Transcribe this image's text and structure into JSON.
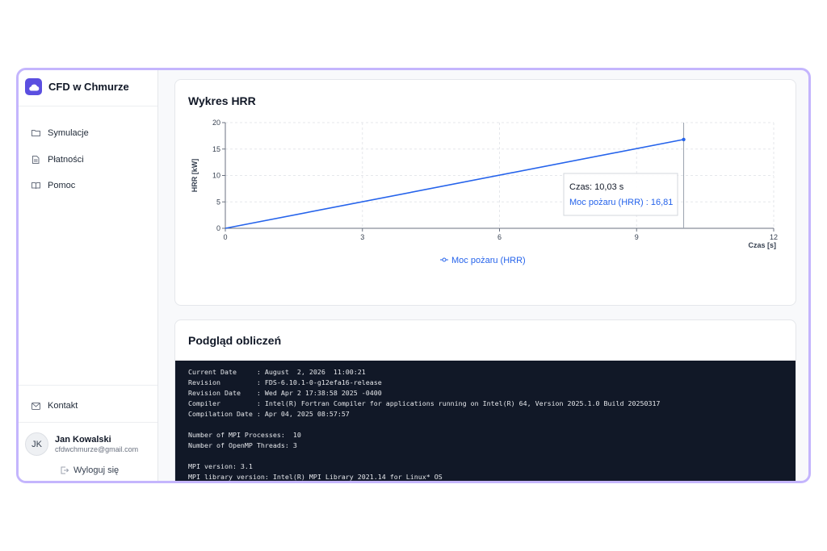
{
  "sidebar": {
    "brand": "CFD w Chmurze",
    "nav": [
      "Symulacje",
      "Płatności",
      "Pomoc"
    ],
    "contact": "Kontakt",
    "user": {
      "initials": "JK",
      "name": "Jan Kowalski",
      "email": "cfdwchmurze@gmail.com"
    },
    "logout": "Wyloguj się"
  },
  "chart_data": {
    "type": "line",
    "title": "Wykres HRR",
    "x_label": "Czas [s]",
    "y_label": "HRR [kW]",
    "x": [
      0,
      10.03
    ],
    "series": [
      {
        "name": "Moc pożaru (HRR)",
        "color": "#2563eb",
        "values": [
          0,
          16.81
        ]
      }
    ],
    "xlim": [
      0,
      12
    ],
    "xticks": [
      0,
      3,
      6,
      9,
      12
    ],
    "ylim": [
      0,
      20
    ],
    "yticks": [
      0,
      5,
      10,
      15,
      20
    ],
    "grid": true,
    "legend": "bottom",
    "tooltip": {
      "x_text": "Czas: 10,03 s",
      "value_text": "Moc pożaru (HRR) : 16,81"
    }
  },
  "preview": {
    "title": "Podgląd obliczeń",
    "terminal": [
      [
        "Current Date     : August  2, 2026  11:00:21",
        "Revision         : FDS-6.10.1-0-g12efa16-release",
        "Revision Date    : Wed Apr 2 17:38:58 2025 -0400",
        "Compiler         : Intel(R) Fortran Compiler for applications running on Intel(R) 64, Version 2025.1.0 Build 20250317",
        "Compilation Date : Apr 04, 2025 08:57:57"
      ],
      [
        "Number of MPI Processes:  10",
        "Number of OpenMP Threads: 3"
      ],
      [
        "MPI version: 3.1",
        "MPI library version: Intel(R) MPI Library 2021.14 for Linux* OS"
      ]
    ]
  }
}
